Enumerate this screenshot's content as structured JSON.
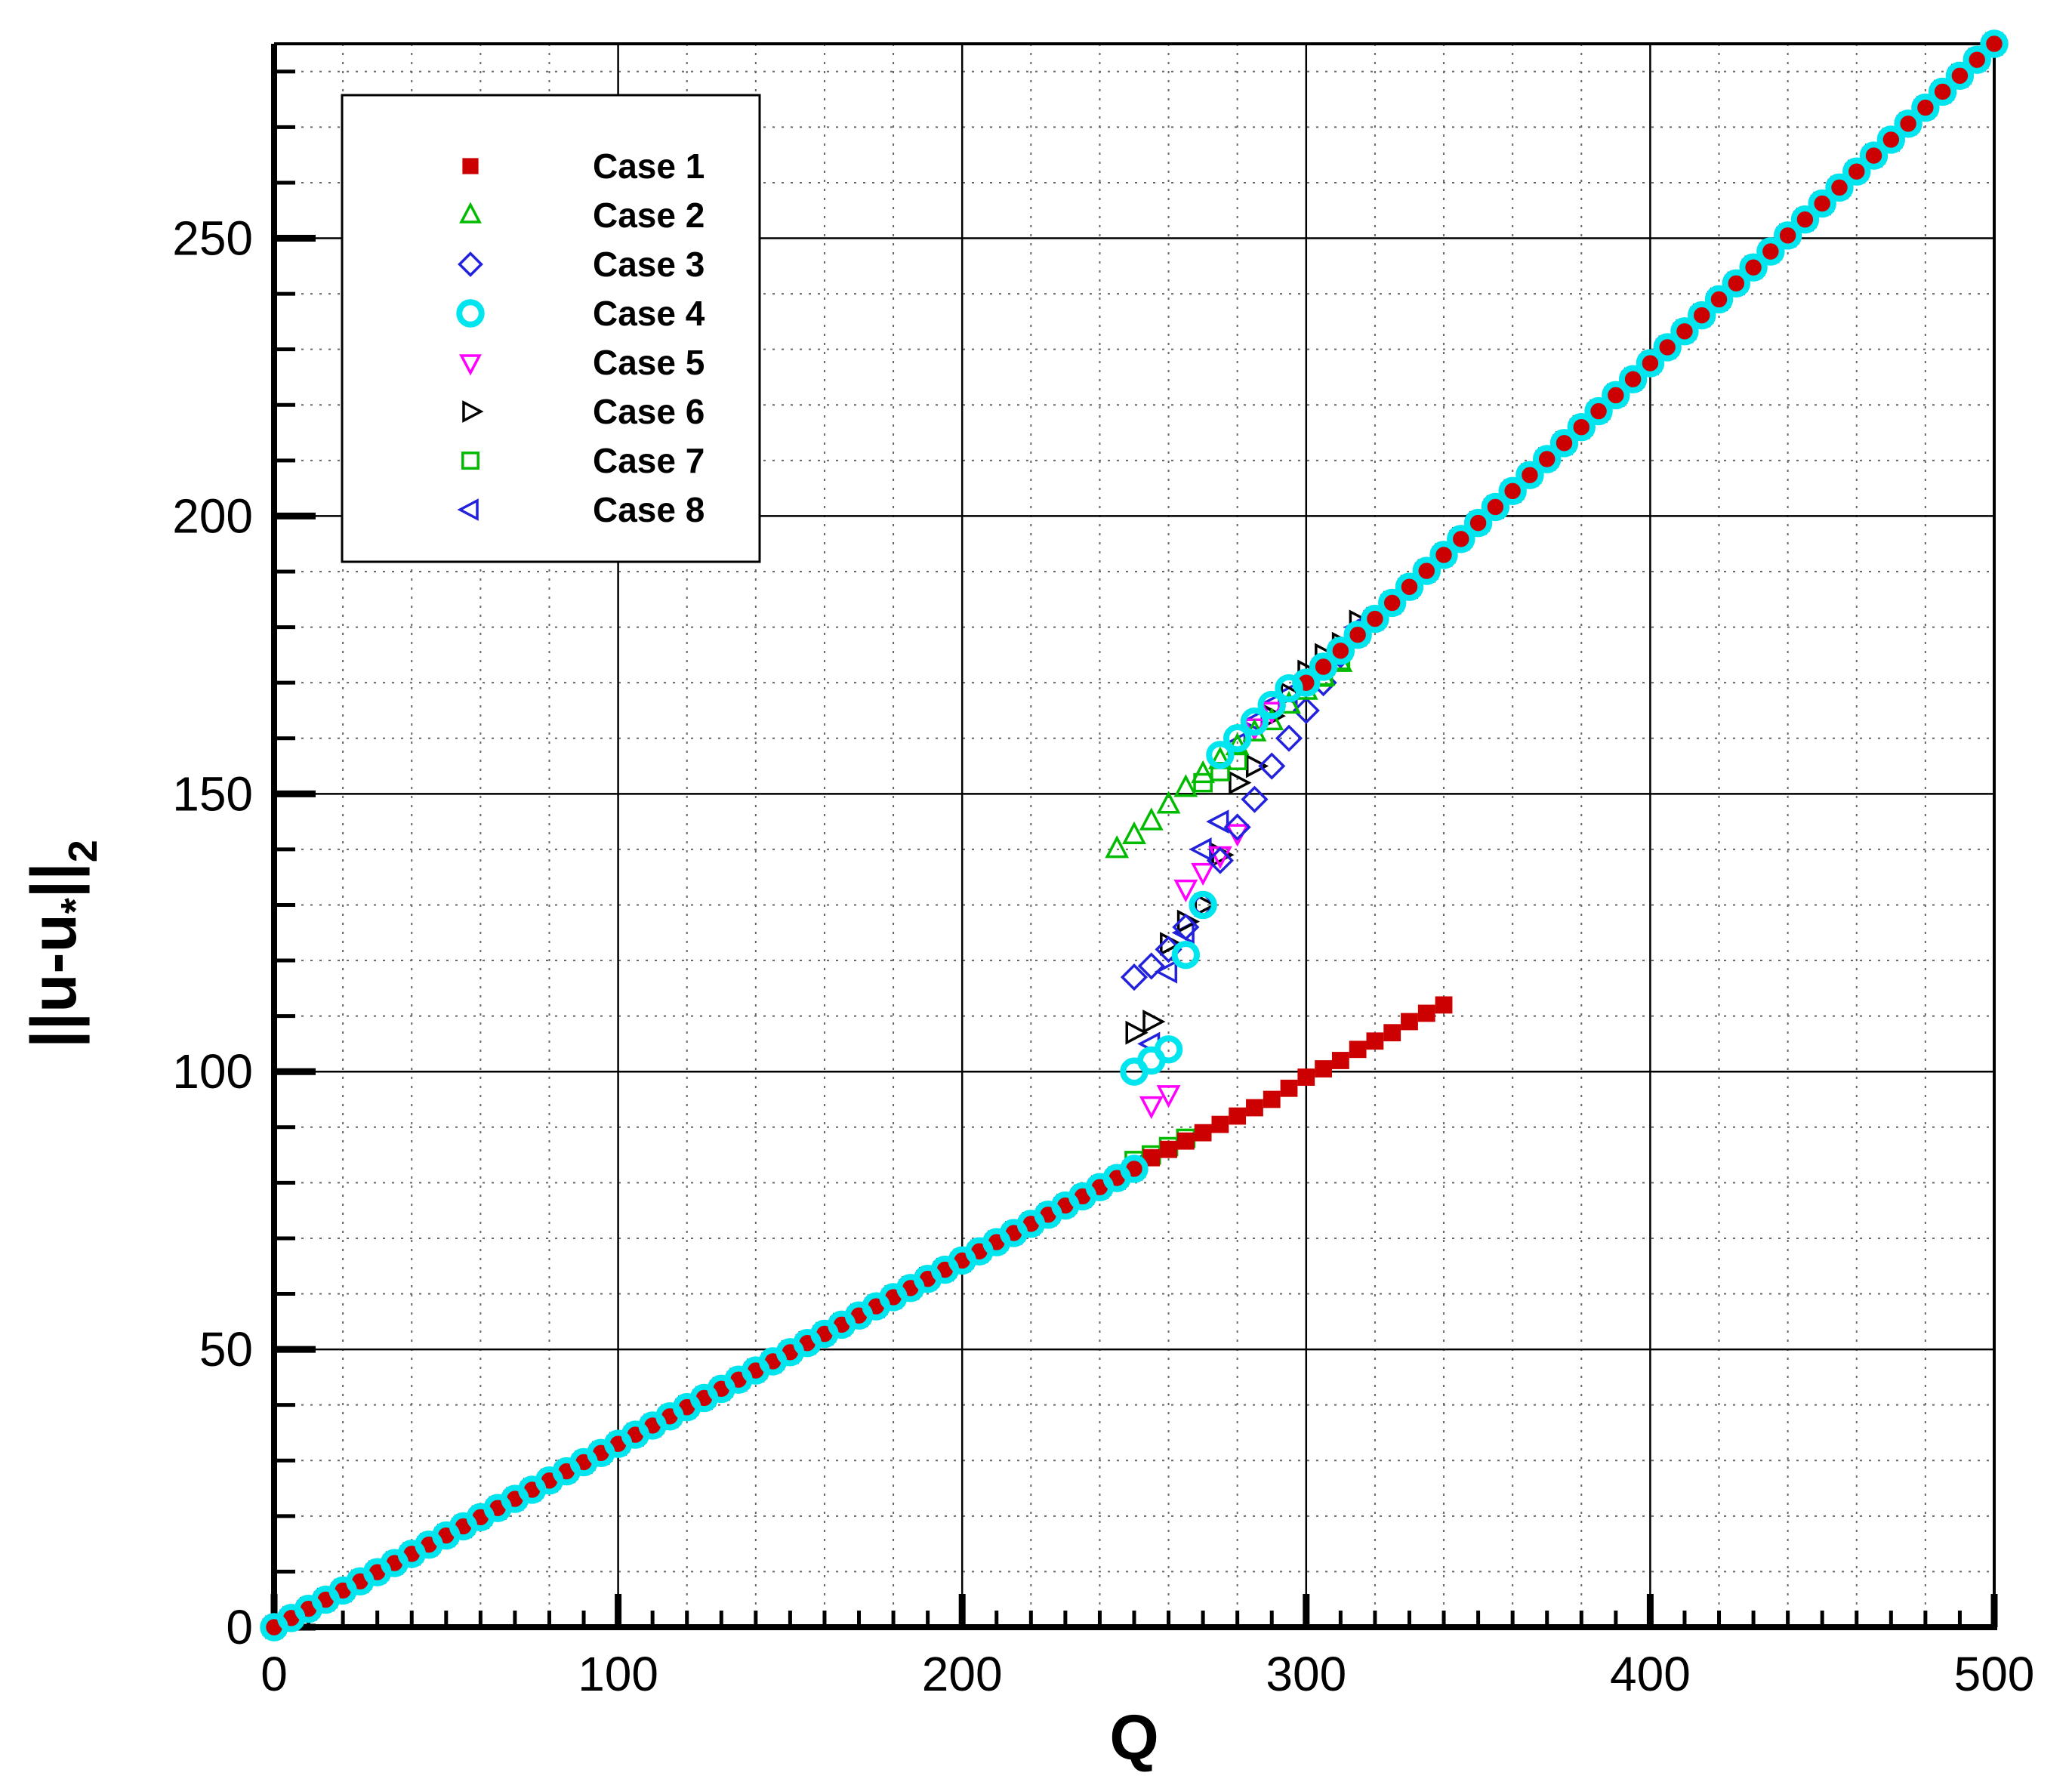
{
  "chart_data": {
    "type": "scatter",
    "title": "",
    "xlabel": "Q",
    "ylabel_parts": {
      "main": "||u-u",
      "sub_star": "*",
      "tail": "||",
      "sub": "2"
    },
    "xlim": [
      0,
      500
    ],
    "ylim": [
      0,
      285
    ],
    "xticks": [
      0,
      100,
      200,
      300,
      400,
      500
    ],
    "yticks": [
      0,
      50,
      100,
      150,
      200,
      250
    ],
    "xticks_labels": [
      "0",
      "100",
      "200",
      "300",
      "400",
      "500"
    ],
    "yticks_labels": [
      "0",
      "50",
      "100",
      "150",
      "200",
      "250"
    ],
    "x_minor_step": 20,
    "y_minor_step": 10,
    "grid": true,
    "legend_position": "top-left",
    "shared_lower_branch": {
      "x_start": 0,
      "x_end": 250,
      "x_step": 5,
      "slope": 0.33
    },
    "shared_upper_branch": {
      "x_start": 300,
      "x_end": 500,
      "x_step": 5,
      "y_start": 170,
      "y_end": 285
    },
    "series": [
      {
        "name": "Case 1",
        "marker": "square-filled",
        "color": "#cc0000",
        "lower": true,
        "upper": true,
        "points": [
          [
            255,
            84.5
          ],
          [
            260,
            86
          ],
          [
            265,
            87.5
          ],
          [
            270,
            89
          ],
          [
            275,
            90.5
          ],
          [
            280,
            92
          ],
          [
            285,
            93.5
          ],
          [
            290,
            95
          ],
          [
            295,
            97
          ],
          [
            300,
            99
          ],
          [
            305,
            100.5
          ],
          [
            310,
            102
          ],
          [
            315,
            104
          ],
          [
            320,
            105.5
          ],
          [
            325,
            107
          ],
          [
            330,
            109
          ],
          [
            335,
            110.5
          ],
          [
            340,
            112
          ]
        ]
      },
      {
        "name": "Case 2",
        "marker": "triangle-up",
        "color": "#00bb00",
        "lower": true,
        "upper": true,
        "points": [
          [
            245,
            140
          ],
          [
            250,
            142.5
          ],
          [
            255,
            145
          ],
          [
            260,
            148
          ],
          [
            265,
            151
          ],
          [
            270,
            153.5
          ],
          [
            275,
            156
          ],
          [
            280,
            158.5
          ],
          [
            285,
            161
          ],
          [
            290,
            163
          ],
          [
            295,
            166
          ],
          [
            300,
            168.5
          ],
          [
            305,
            171
          ],
          [
            310,
            173.5
          ]
        ]
      },
      {
        "name": "Case 3",
        "marker": "diamond",
        "color": "#2222dd",
        "lower": true,
        "upper": true,
        "points": [
          [
            250,
            117
          ],
          [
            255,
            119
          ],
          [
            260,
            122
          ],
          [
            265,
            126
          ],
          [
            270,
            130
          ],
          [
            275,
            138
          ],
          [
            280,
            144
          ],
          [
            285,
            149
          ],
          [
            290,
            155
          ],
          [
            295,
            160
          ],
          [
            300,
            165
          ],
          [
            305,
            170
          ],
          [
            310,
            175
          ],
          [
            315,
            179
          ]
        ]
      },
      {
        "name": "Case 4",
        "marker": "circle",
        "color": "#00e5ee",
        "lower": true,
        "upper": true,
        "points": [
          [
            250,
            100
          ],
          [
            255,
            102
          ],
          [
            260,
            104
          ],
          [
            265,
            121
          ],
          [
            270,
            130
          ],
          [
            275,
            157
          ],
          [
            280,
            160
          ],
          [
            285,
            163
          ],
          [
            290,
            166
          ],
          [
            295,
            169
          ]
        ]
      },
      {
        "name": "Case 5",
        "marker": "triangle-down",
        "color": "#ff00ff",
        "lower": true,
        "upper": true,
        "points": [
          [
            255,
            94
          ],
          [
            260,
            96
          ],
          [
            265,
            133
          ],
          [
            270,
            136
          ],
          [
            275,
            139
          ],
          [
            280,
            143
          ],
          [
            285,
            162
          ],
          [
            290,
            165
          ]
        ]
      },
      {
        "name": "Case 6",
        "marker": "triangle-right",
        "color": "#000000",
        "lower": true,
        "upper": true,
        "points": [
          [
            250,
            107
          ],
          [
            255,
            109
          ],
          [
            260,
            123
          ],
          [
            265,
            127
          ],
          [
            270,
            130
          ],
          [
            275,
            139
          ],
          [
            280,
            152
          ],
          [
            285,
            155
          ],
          [
            290,
            164
          ],
          [
            295,
            168
          ],
          [
            300,
            172
          ],
          [
            305,
            175
          ],
          [
            310,
            177
          ],
          [
            315,
            181
          ]
        ]
      },
      {
        "name": "Case 7",
        "marker": "square",
        "color": "#00bb00",
        "lower": true,
        "upper": true,
        "points": [
          [
            250,
            84
          ],
          [
            255,
            85
          ],
          [
            260,
            86.5
          ],
          [
            265,
            88
          ],
          [
            270,
            152
          ],
          [
            275,
            154
          ],
          [
            280,
            156
          ],
          [
            305,
            171
          ],
          [
            310,
            174
          ]
        ]
      },
      {
        "name": "Case 8",
        "marker": "triangle-left",
        "color": "#2222dd",
        "lower": true,
        "upper": true,
        "points": [
          [
            250,
            83
          ],
          [
            255,
            105
          ],
          [
            260,
            118
          ],
          [
            265,
            125
          ],
          [
            270,
            140
          ],
          [
            275,
            145
          ],
          [
            280,
            159
          ],
          [
            285,
            163
          ],
          [
            290,
            166
          ],
          [
            295,
            168
          ],
          [
            300,
            170
          ],
          [
            305,
            173
          ],
          [
            310,
            176
          ],
          [
            315,
            180
          ]
        ]
      }
    ]
  }
}
